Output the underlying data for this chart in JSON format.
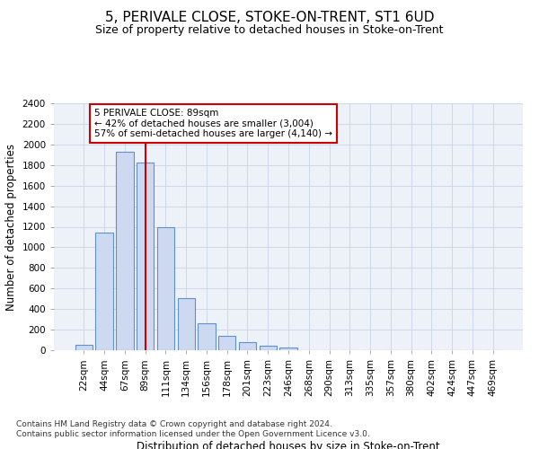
{
  "title": "5, PERIVALE CLOSE, STOKE-ON-TRENT, ST1 6UD",
  "subtitle": "Size of property relative to detached houses in Stoke-on-Trent",
  "xlabel": "Distribution of detached houses by size in Stoke-on-Trent",
  "ylabel": "Number of detached properties",
  "categories": [
    "22sqm",
    "44sqm",
    "67sqm",
    "89sqm",
    "111sqm",
    "134sqm",
    "156sqm",
    "178sqm",
    "201sqm",
    "223sqm",
    "246sqm",
    "268sqm",
    "290sqm",
    "313sqm",
    "335sqm",
    "357sqm",
    "380sqm",
    "402sqm",
    "424sqm",
    "447sqm",
    "469sqm"
  ],
  "values": [
    50,
    1140,
    1930,
    1820,
    1200,
    510,
    260,
    140,
    75,
    40,
    30,
    0,
    0,
    0,
    0,
    0,
    0,
    0,
    0,
    0,
    0
  ],
  "bar_color": "#ccd9f0",
  "bar_edge_color": "#6090c8",
  "red_line_index": 3,
  "annotation_text": "5 PERIVALE CLOSE: 89sqm\n← 42% of detached houses are smaller (3,004)\n57% of semi-detached houses are larger (4,140) →",
  "annotation_box_color": "#ffffff",
  "annotation_box_edge": "#cc0000",
  "ylim": [
    0,
    2400
  ],
  "yticks": [
    0,
    200,
    400,
    600,
    800,
    1000,
    1200,
    1400,
    1600,
    1800,
    2000,
    2200,
    2400
  ],
  "footnote": "Contains HM Land Registry data © Crown copyright and database right 2024.\nContains public sector information licensed under the Open Government Licence v3.0.",
  "title_fontsize": 11,
  "subtitle_fontsize": 9,
  "axis_label_fontsize": 8.5,
  "tick_fontsize": 7.5,
  "annotation_fontsize": 7.5,
  "footnote_fontsize": 6.5,
  "grid_color": "#c8d4e8",
  "background_color": "#edf2f9"
}
